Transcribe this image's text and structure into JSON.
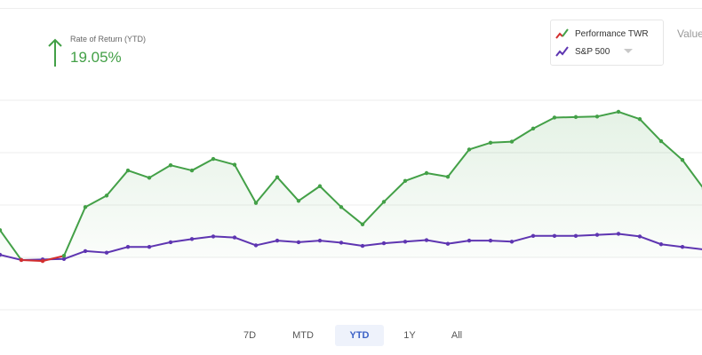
{
  "summary": {
    "label": "Rate of Return (YTD)",
    "value": "19.05%"
  },
  "legend": {
    "items": [
      {
        "label": "Performance TWR",
        "color": "#43a047",
        "alt_color": "#d32f2f"
      },
      {
        "label": "S&P 500",
        "color": "#5e35b1"
      }
    ]
  },
  "value_label": "Value",
  "periods": {
    "items": [
      "7D",
      "MTD",
      "YTD",
      "1Y",
      "All"
    ],
    "active": "YTD"
  },
  "colors": {
    "gain": "#43a047",
    "loss": "#d32f2f",
    "benchmark": "#5e35b1",
    "active_period_bg": "#eef2fb",
    "active_period_text": "#3d63c7"
  },
  "chart_data": {
    "type": "line",
    "grid": true,
    "baseline": 0,
    "ylim": [
      -10,
      40
    ],
    "x": [
      0,
      1,
      2,
      3,
      4,
      5,
      6,
      7,
      8,
      9,
      10,
      11,
      12,
      13,
      14,
      15,
      16,
      17,
      18,
      19,
      20,
      21,
      22,
      23,
      24,
      25,
      26,
      27,
      28,
      29,
      30,
      31,
      32,
      33
    ],
    "series": [
      {
        "name": "Performance TWR",
        "values": [
          5.2,
          -0.5,
          -0.7,
          0.3,
          9.6,
          11.8,
          16.6,
          15.2,
          17.6,
          16.6,
          18.8,
          17.7,
          10.4,
          15.3,
          10.8,
          13.6,
          9.6,
          6.3,
          10.6,
          14.6,
          16.1,
          15.4,
          20.6,
          21.9,
          22.1,
          24.6,
          26.7,
          26.8,
          26.9,
          27.8,
          26.4,
          22.2,
          18.6,
          13.1
        ]
      },
      {
        "name": "S&P 500",
        "values": [
          0.5,
          -0.5,
          -0.4,
          -0.3,
          1.2,
          0.9,
          2.0,
          2.0,
          2.9,
          3.5,
          4.0,
          3.8,
          2.3,
          3.2,
          2.9,
          3.2,
          2.8,
          2.2,
          2.7,
          3.0,
          3.3,
          2.6,
          3.2,
          3.2,
          3.0,
          4.1,
          4.1,
          4.1,
          4.3,
          4.5,
          4.0,
          2.5,
          2.0,
          1.5
        ]
      }
    ]
  }
}
